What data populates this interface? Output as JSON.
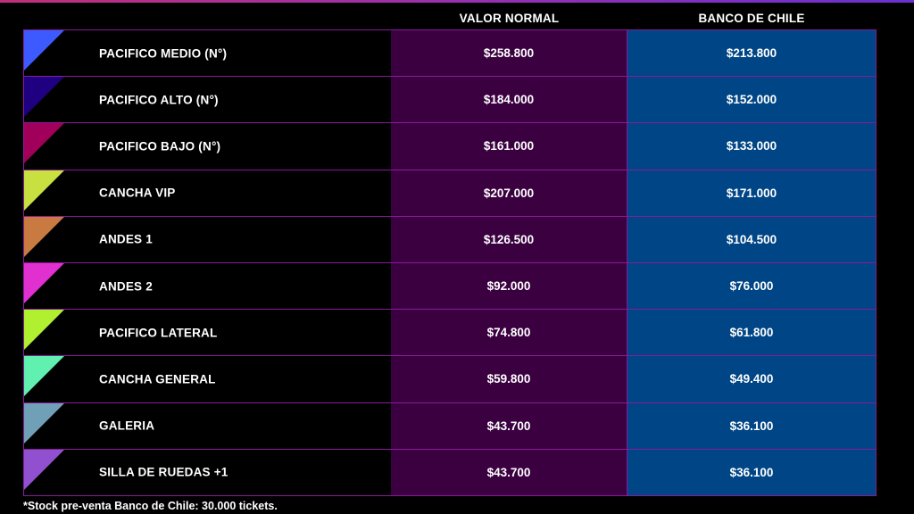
{
  "header": {
    "col_normal": "VALOR NORMAL",
    "col_banco": "BANCO DE CHILE"
  },
  "rows": [
    {
      "name": "PACIFICO MEDIO (N°)",
      "normal": "$258.800",
      "banco": "$213.800",
      "color": "#3d5afe"
    },
    {
      "name": "PACIFICO ALTO (N°)",
      "normal": "$184.000",
      "banco": "$152.000",
      "color": "#1e0080"
    },
    {
      "name": "PACIFICO BAJO (N°)",
      "normal": "$161.000",
      "banco": "$133.000",
      "color": "#a0005a"
    },
    {
      "name": "CANCHA VIP",
      "normal": "$207.000",
      "banco": "$171.000",
      "color": "#c8e040"
    },
    {
      "name": "ANDES 1",
      "normal": "$126.500",
      "banco": "$104.500",
      "color": "#c87a40"
    },
    {
      "name": "ANDES 2",
      "normal": "$92.000",
      "banco": "$76.000",
      "color": "#e030d0"
    },
    {
      "name": "PACIFICO LATERAL",
      "normal": "$74.800",
      "banco": "$61.800",
      "color": "#b0f030"
    },
    {
      "name": "CANCHA GENERAL",
      "normal": "$59.800",
      "banco": "$49.400",
      "color": "#60f0b0"
    },
    {
      "name": "GALERIA",
      "normal": "$43.700",
      "banco": "$36.100",
      "color": "#70a0b8"
    },
    {
      "name": "SILLA DE RUEDAS +1",
      "normal": "$43.700",
      "banco": "$36.100",
      "color": "#9050d0"
    }
  ],
  "footnote": "*Stock pre-venta Banco de Chile: 30.000 tickets."
}
